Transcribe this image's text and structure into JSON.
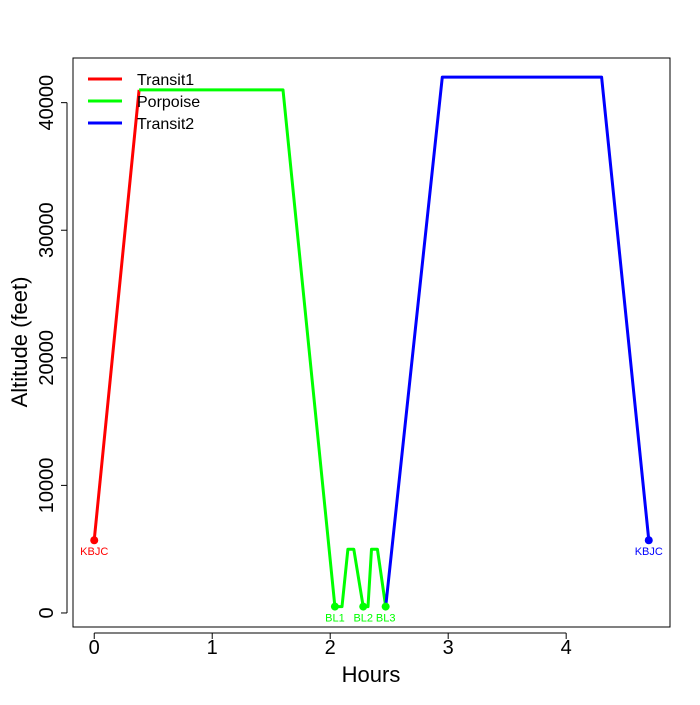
{
  "chart_data": {
    "type": "line",
    "title": "",
    "xlabel": "Hours",
    "ylabel": "Altitude (feet)",
    "xlim": [
      -0.18,
      4.88
    ],
    "ylim": [
      -1100,
      43500
    ],
    "x_ticks": [
      0,
      1,
      2,
      3,
      4
    ],
    "y_ticks": [
      0,
      10000,
      20000,
      30000,
      40000
    ],
    "grid": false,
    "legend_position": "top-left",
    "series": [
      {
        "name": "Transit1",
        "color": "#ff0000",
        "points": [
          [
            0,
            5700
          ],
          [
            0.38,
            41000
          ]
        ]
      },
      {
        "name": "Porpoise",
        "color": "#00ff00",
        "points": [
          [
            0.38,
            41000
          ],
          [
            1.6,
            41000
          ],
          [
            2.04,
            500
          ],
          [
            2.1,
            500
          ],
          [
            2.15,
            5000
          ],
          [
            2.2,
            5000
          ],
          [
            2.28,
            500
          ],
          [
            2.32,
            500
          ],
          [
            2.35,
            5000
          ],
          [
            2.4,
            5000
          ],
          [
            2.47,
            500
          ]
        ]
      },
      {
        "name": "Transit2",
        "color": "#0000ff",
        "points": [
          [
            2.47,
            500
          ],
          [
            2.95,
            42000
          ],
          [
            4.3,
            42000
          ],
          [
            4.7,
            5700
          ]
        ]
      }
    ],
    "markers": [
      {
        "label": "KBJC",
        "x": 0,
        "y": 5700,
        "color": "#ff0000"
      },
      {
        "label": "BL1",
        "x": 2.04,
        "y": 500,
        "color": "#00ff00"
      },
      {
        "label": "BL2",
        "x": 2.28,
        "y": 500,
        "color": "#00ff00"
      },
      {
        "label": "BL3",
        "x": 2.47,
        "y": 500,
        "color": "#00ff00"
      },
      {
        "label": "KBJC",
        "x": 4.7,
        "y": 5700,
        "color": "#0000ff"
      }
    ]
  }
}
